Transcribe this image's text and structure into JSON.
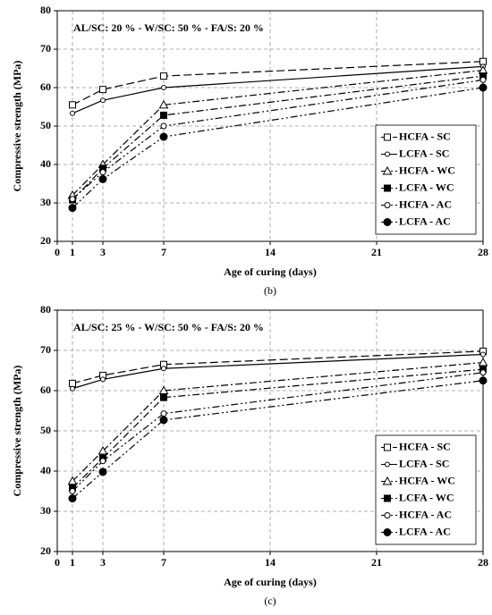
{
  "chart_data": [
    {
      "type": "line",
      "annotation": "AL/SC: 20 % - W/SC: 50 % - FA/S: 20 %",
      "caption": "(b)",
      "xlabel": "Age of curing (days)",
      "ylabel": "Compressive strength (MPa)",
      "x": [
        1,
        3,
        7,
        28
      ],
      "xlim": [
        0,
        28
      ],
      "xticks": [
        0,
        1,
        3,
        7,
        14,
        21,
        28
      ],
      "ylim": [
        20,
        80
      ],
      "yticks": [
        20,
        30,
        40,
        50,
        60,
        70,
        80
      ],
      "grid": true,
      "legend": "lower right",
      "series": [
        {
          "name": "HCFA - SC",
          "color": "#000000",
          "dash": "dashed",
          "marker": "square-open",
          "values": [
            55.5,
            59.5,
            63,
            66.8
          ]
        },
        {
          "name": "LCFA - SC",
          "color": "#000000",
          "dash": "solid",
          "marker": "circle-small",
          "values": [
            53.3,
            56.7,
            60,
            65.5
          ]
        },
        {
          "name": "HCFA - WC",
          "color": "#000000",
          "dash": "dashdot",
          "marker": "triangle-open",
          "values": [
            32,
            40,
            55.5,
            64.5
          ]
        },
        {
          "name": "LCFA - WC",
          "color": "#000000",
          "dash": "dashdot",
          "marker": "square-filled",
          "values": [
            30.8,
            39,
            52.8,
            63
          ]
        },
        {
          "name": "HCFA - AC",
          "color": "#000000",
          "dash": "dashdotdot",
          "marker": "circle-open",
          "values": [
            31,
            38,
            50,
            62
          ]
        },
        {
          "name": "LCFA - AC",
          "color": "#000000",
          "dash": "dashdotdot",
          "marker": "circle-filled",
          "values": [
            28.7,
            36.2,
            47.2,
            60
          ]
        }
      ]
    },
    {
      "type": "line",
      "annotation": "AL/SC: 25 % - W/SC: 50 % - FA/S: 20 %",
      "caption": "(c)",
      "xlabel": "Age of curing (days)",
      "ylabel": "Compressive strength (MPa)",
      "x": [
        1,
        3,
        7,
        28
      ],
      "xlim": [
        0,
        28
      ],
      "xticks": [
        0,
        1,
        3,
        7,
        14,
        21,
        28
      ],
      "ylim": [
        20,
        80
      ],
      "yticks": [
        20,
        30,
        40,
        50,
        60,
        70,
        80
      ],
      "grid": true,
      "legend": "lower right",
      "series": [
        {
          "name": "HCFA - SC",
          "color": "#000000",
          "dash": "dashed",
          "marker": "square-open",
          "values": [
            61.8,
            63.8,
            66.5,
            69.8
          ]
        },
        {
          "name": "LCFA - SC",
          "color": "#000000",
          "dash": "solid",
          "marker": "circle-small",
          "values": [
            60.5,
            62.8,
            65.5,
            69
          ]
        },
        {
          "name": "HCFA - WC",
          "color": "#000000",
          "dash": "dashdot",
          "marker": "triangle-open",
          "values": [
            37.5,
            45,
            60,
            67
          ]
        },
        {
          "name": "LCFA - WC",
          "color": "#000000",
          "dash": "dashdot",
          "marker": "square-filled",
          "values": [
            35.8,
            43.2,
            58.3,
            65.3
          ]
        },
        {
          "name": "HCFA - AC",
          "color": "#000000",
          "dash": "dashdotdot",
          "marker": "circle-open",
          "values": [
            35,
            42.5,
            54.3,
            64.5
          ]
        },
        {
          "name": "LCFA - AC",
          "color": "#000000",
          "dash": "dashdotdot",
          "marker": "circle-filled",
          "values": [
            33.2,
            39.8,
            52.7,
            62.5
          ]
        }
      ]
    }
  ]
}
